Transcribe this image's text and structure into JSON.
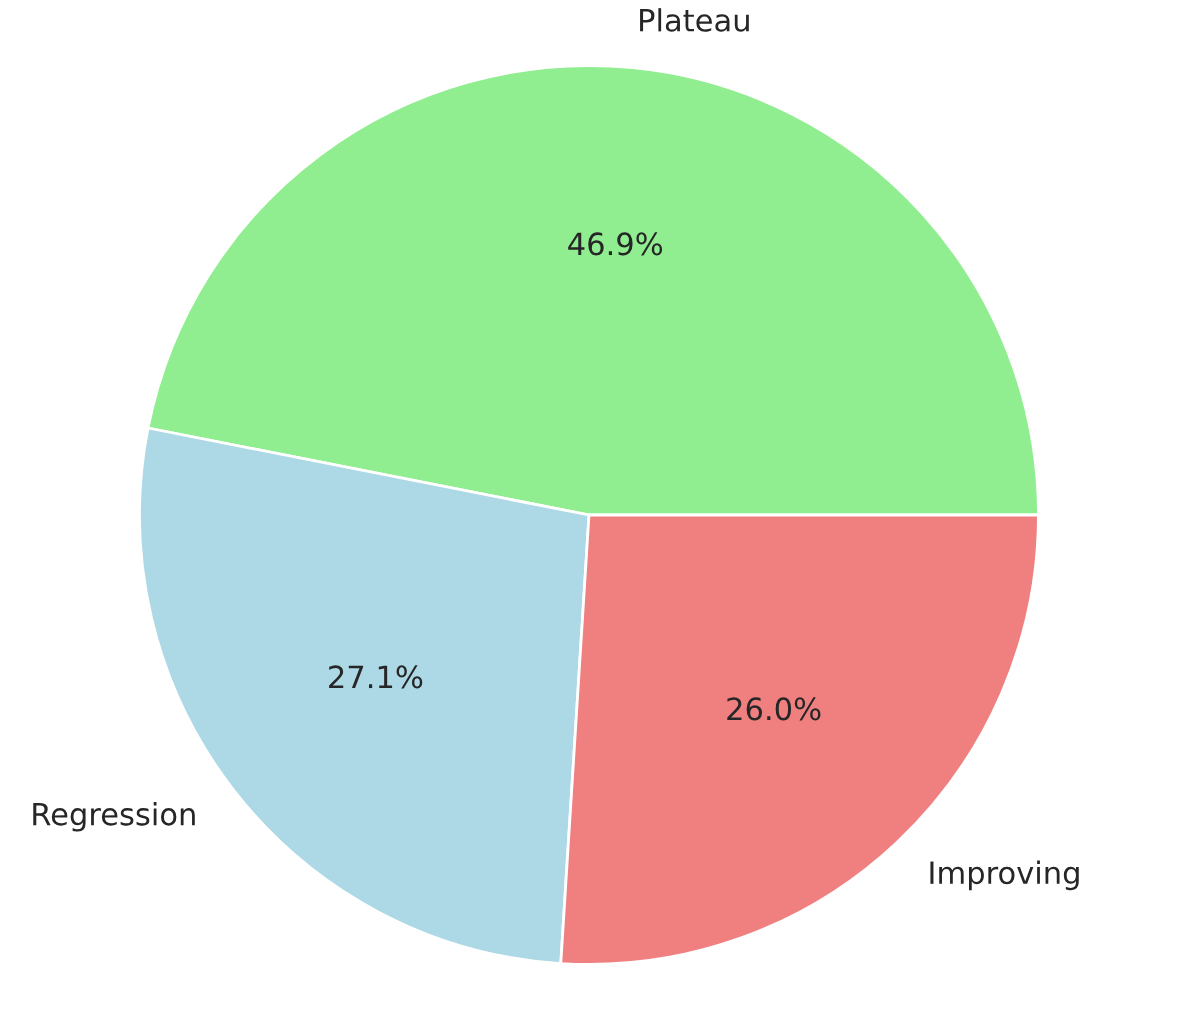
{
  "chart_data": {
    "type": "pie",
    "categories": [
      "Plateau",
      "Regression",
      "Improving"
    ],
    "values": [
      46.9,
      27.1,
      26.0
    ],
    "colors": [
      "#90ee90",
      "#add8e6",
      "#f08080"
    ],
    "value_labels": [
      "46.9%",
      "27.1%",
      "26.0%"
    ]
  }
}
